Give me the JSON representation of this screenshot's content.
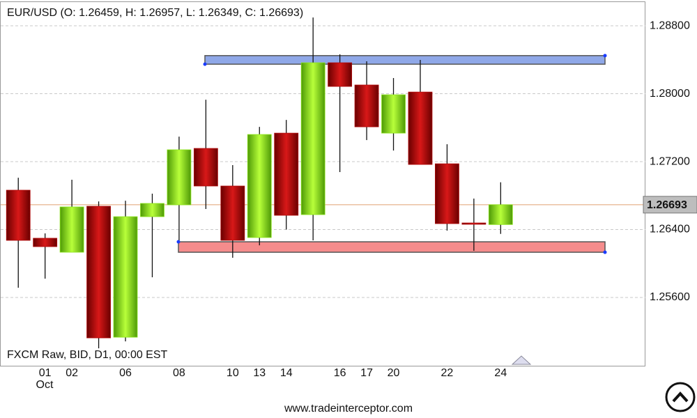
{
  "chart_data": {
    "type": "candlestick",
    "title": "EUR/USD (O: 1.26459, H: 1.26957, L: 1.26349, C: 1.26693)",
    "subtitle": "FXCM Raw, BID, D1, 00:00 EST",
    "footer": "www.tradeinterceptor.com",
    "month_label": "Oct",
    "categories": [
      null,
      "01",
      "02",
      null,
      "06",
      null,
      "08",
      null,
      "10",
      "13",
      "14",
      null,
      "16",
      "17",
      "20",
      null,
      "22",
      null,
      "24"
    ],
    "open": [
      1.26864,
      1.26298,
      1.26133,
      1.26675,
      1.25132,
      1.26552,
      1.26691,
      1.27356,
      1.26913,
      1.26306,
      1.27536,
      1.26576,
      1.28365,
      1.28103,
      1.27536,
      1.2802,
      1.27175,
      1.26478,
      1.26459
    ],
    "high": [
      1.27011,
      1.26355,
      1.26987,
      1.26732,
      1.2674,
      1.26823,
      1.27495,
      1.2793,
      1.27159,
      1.2761,
      1.27692,
      1.28898,
      1.28464,
      1.28382,
      1.28185,
      1.28398,
      1.27405,
      1.26765,
      1.26957
    ],
    "low": [
      1.25715,
      1.25822,
      1.26133,
      1.25001,
      1.25083,
      1.25838,
      1.26273,
      1.26642,
      1.26068,
      1.26215,
      1.264,
      1.26273,
      1.27077,
      1.27454,
      1.27331,
      1.27167,
      1.26388,
      1.2615,
      1.26349
    ],
    "close": [
      1.26273,
      1.26199,
      1.26667,
      1.25124,
      1.26552,
      1.26708,
      1.2734,
      1.26913,
      1.26273,
      1.2752,
      1.26568,
      1.28365,
      1.28086,
      1.2761,
      1.27988,
      1.27167,
      1.2647,
      1.26462,
      1.26693
    ],
    "up_color": "#8ee61e",
    "down_color": "#b30a0a",
    "ylim": [
      1.24796,
      1.29104
    ],
    "yticks": [
      {
        "value": 1.256,
        "label": "1.25600"
      },
      {
        "value": 1.264,
        "label": "1.26400"
      },
      {
        "value": 1.272,
        "label": "1.27200"
      },
      {
        "value": 1.28,
        "label": "1.28000"
      },
      {
        "value": 1.288,
        "label": "1.28800"
      }
    ],
    "grid": true,
    "last_price": {
      "value": 1.26693,
      "label": "1.26693"
    },
    "last_price_color": "#e0a070",
    "zones": [
      {
        "top": 1.28449,
        "bottom": 1.28348,
        "color": "#8fa8e8"
      },
      {
        "top": 1.26256,
        "bottom": 1.26133,
        "color": "#f58c8c"
      }
    ]
  }
}
